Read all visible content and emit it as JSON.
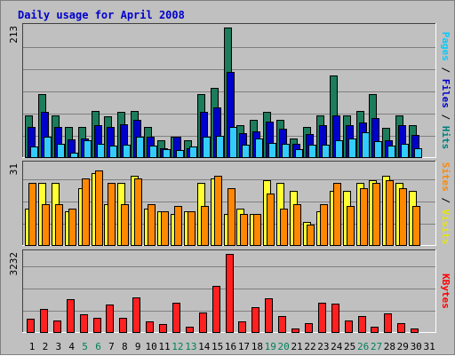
{
  "chart_data": {
    "title": "Daily usage for April 2008",
    "type": "bar",
    "days": [
      "1",
      "2",
      "3",
      "4",
      "5",
      "6",
      "7",
      "8",
      "9",
      "10",
      "11",
      "12",
      "13",
      "14",
      "15",
      "16",
      "17",
      "18",
      "19",
      "20",
      "21",
      "22",
      "23",
      "24",
      "25",
      "26",
      "27",
      "28",
      "29",
      "30",
      "31"
    ],
    "weekend_days": [
      "5",
      "6",
      "12",
      "13",
      "19",
      "20",
      "26",
      "27"
    ],
    "panels": [
      {
        "id": "hits",
        "ymax_label": "213",
        "ymax": 213,
        "right_label": [
          {
            "text": "Pages",
            "color": "#00ccff"
          },
          {
            "text": " / ",
            "color": "#000000"
          },
          {
            "text": "Files",
            "color": "#0000cc"
          },
          {
            "text": " / ",
            "color": "#000000"
          },
          {
            "text": "Hits",
            "color": "#008080"
          }
        ],
        "series": [
          {
            "name": "Hits",
            "color": "#1c7c5c",
            "values": [
              68,
              103,
              68,
              50,
              49,
              76,
              67,
              75,
              76,
              50,
              27,
              34,
              27,
              103,
              114,
              213,
              53,
              62,
              75,
              61,
              31,
              49,
              68,
              134,
              68,
              76,
              103,
              48,
              69,
              52
            ]
          },
          {
            "name": "Files",
            "color": "#0000cc",
            "values": [
              50,
              75,
              50,
              29,
              30,
              52,
              49,
              54,
              61,
              34,
              15,
              34,
              15,
              75,
              82,
              140,
              39,
              42,
              59,
              47,
              22,
              38,
              52,
              69,
              52,
              57,
              64,
              28,
              52,
              37
            ]
          },
          {
            "name": "Pages",
            "color": "#33ccff",
            "values": [
              18,
              34,
              22,
              8,
              27,
              22,
              19,
              21,
              33,
              19,
              13,
              12,
              18,
              33,
              35,
              49,
              20,
              31,
              23,
              22,
              13,
              20,
              21,
              27,
              30,
              41,
              26,
              19,
              22,
              15
            ]
          }
        ]
      },
      {
        "id": "visits",
        "ymax_label": "31",
        "ymax": 31,
        "right_label": [
          {
            "text": "Sites",
            "color": "#ff8800"
          },
          {
            "text": " / ",
            "color": "#000000"
          },
          {
            "text": "Visits",
            "color": "#e6e600"
          }
        ],
        "series": [
          {
            "name": "Visits",
            "color": "#ffff33",
            "values": [
              14,
              24,
              24,
              13,
              22,
              28,
              16,
              24,
              27,
              14,
              13,
              12,
              13,
              24,
              26,
              12,
              14,
              12,
              25,
              24,
              21,
              9,
              13,
              21,
              21,
              24,
              25,
              27,
              24,
              21
            ]
          },
          {
            "name": "Sites",
            "color": "#ff8800",
            "values": [
              24,
              16,
              16,
              14,
              26,
              29,
              24,
              16,
              26,
              16,
              13,
              15,
              13,
              15,
              27,
              22,
              12,
              12,
              20,
              14,
              16,
              8,
              16,
              24,
              15,
              22,
              24,
              25,
              22,
              15
            ]
          }
        ]
      },
      {
        "id": "kbytes",
        "ymax_label": "3232",
        "ymax": 3232,
        "right_label": [
          {
            "text": "KBytes",
            "color": "#ff0000"
          }
        ],
        "series": [
          {
            "name": "KBytes",
            "color": "#ff2020",
            "values": [
              566,
              970,
              489,
              1366,
              717,
              576,
              1147,
              605,
              1424,
              425,
              318,
              1201,
              203,
              792,
              1920,
              3232,
              444,
              1035,
              1405,
              667,
              145,
              367,
              1213,
              1175,
              462,
              674,
              232,
              783,
              379,
              162
            ]
          }
        ]
      }
    ]
  }
}
